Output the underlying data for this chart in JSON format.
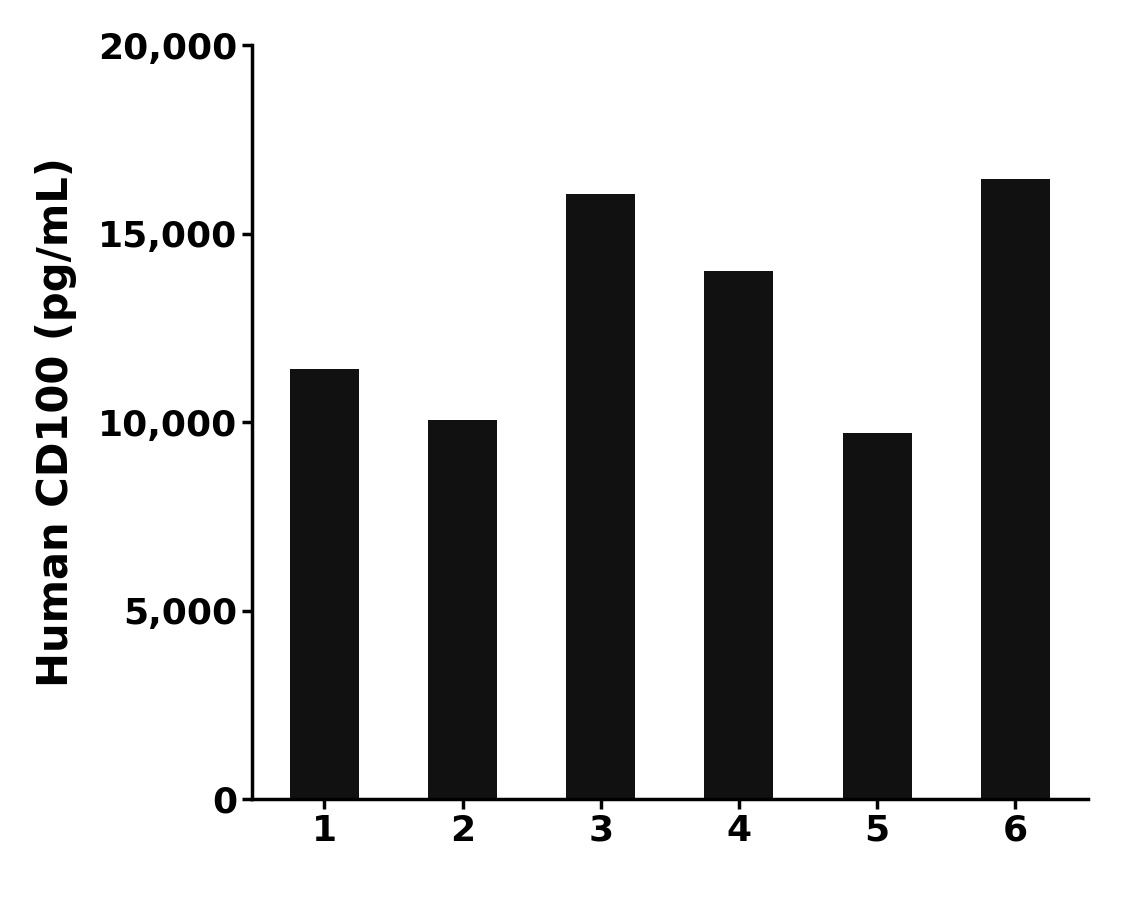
{
  "categories": [
    "1",
    "2",
    "3",
    "4",
    "5",
    "6"
  ],
  "values": [
    11400,
    10050,
    16050,
    14000,
    9708.2,
    16458.0
  ],
  "bar_color": "#111111",
  "ylabel": "Human CD100 (pg/mL)",
  "ylim": [
    0,
    20000
  ],
  "yticks": [
    0,
    5000,
    10000,
    15000,
    20000
  ],
  "background_color": "#ffffff",
  "bar_width": 0.5,
  "ylabel_fontsize": 30,
  "tick_fontsize": 26
}
